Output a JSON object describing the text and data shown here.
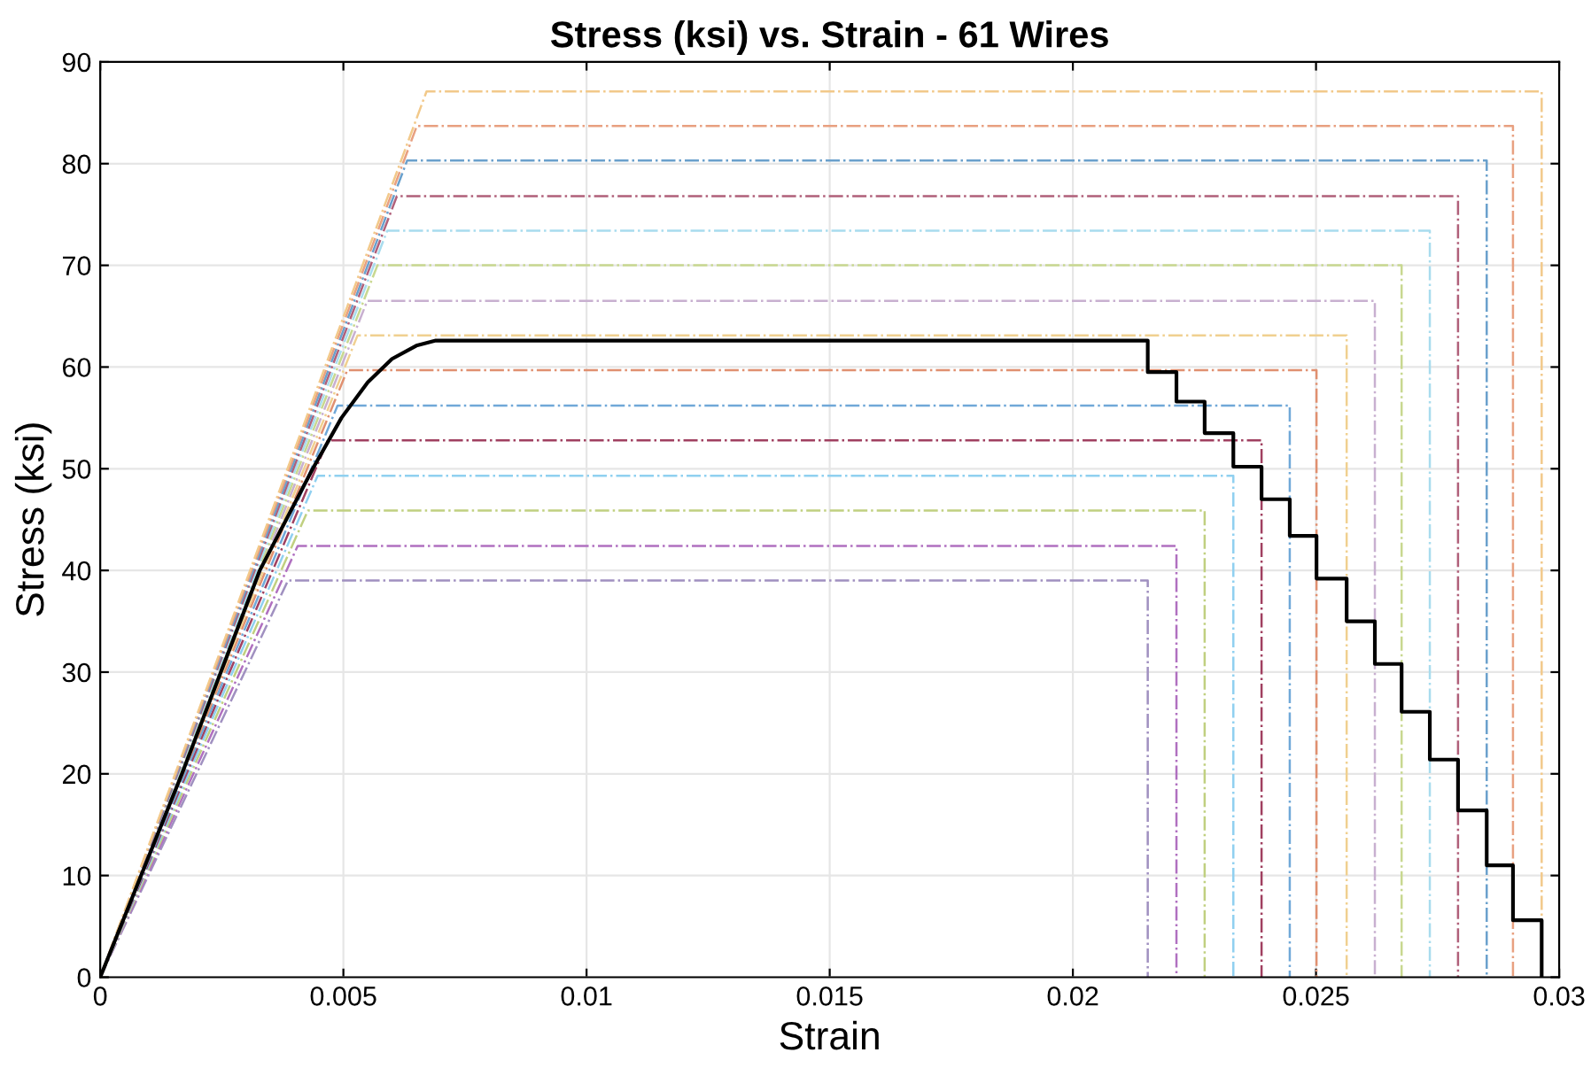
{
  "chart_data": {
    "type": "line",
    "title": "Stress (ksi) vs. Strain - 61 Wires",
    "xlabel": "Strain",
    "ylabel": "Stress (ksi)",
    "xlim": [
      0,
      0.03
    ],
    "ylim": [
      0,
      90
    ],
    "xticks": [
      0,
      0.005,
      0.01,
      0.015,
      0.02,
      0.025,
      0.03
    ],
    "yticks": [
      0,
      10,
      20,
      30,
      40,
      50,
      60,
      70,
      80,
      90
    ],
    "grid": true,
    "series": [
      {
        "color": "#a090c0",
        "line_style": "dashdot",
        "x": [
          0,
          0.00386,
          0.02154,
          0.02154
        ],
        "values": [
          0,
          39.0,
          39.0,
          0
        ]
      },
      {
        "color": "#b070c0",
        "line_style": "dashdot",
        "x": [
          0,
          0.00406,
          0.02213,
          0.02213
        ],
        "values": [
          0,
          42.4,
          42.4,
          0
        ]
      },
      {
        "color": "#c0d080",
        "line_style": "dashdot",
        "x": [
          0,
          0.00427,
          0.02271,
          0.02271
        ],
        "values": [
          0,
          45.9,
          45.9,
          0
        ]
      },
      {
        "color": "#90d0f0",
        "line_style": "dashdot",
        "x": [
          0,
          0.00447,
          0.0233,
          0.0233
        ],
        "values": [
          0,
          49.3,
          49.3,
          0
        ]
      },
      {
        "color": "#a04060",
        "line_style": "dashdot",
        "x": [
          0,
          0.00468,
          0.02388,
          0.02388
        ],
        "values": [
          0,
          52.8,
          52.8,
          0
        ]
      },
      {
        "color": "#70a8d8",
        "line_style": "dashdot",
        "x": [
          0,
          0.00488,
          0.02446,
          0.02446
        ],
        "values": [
          0,
          56.2,
          56.2,
          0
        ]
      },
      {
        "color": "#e09070",
        "line_style": "dashdot",
        "x": [
          0,
          0.00508,
          0.02501,
          0.02501
        ],
        "values": [
          0,
          59.7,
          59.7,
          0
        ]
      },
      {
        "color": "#f0d090",
        "line_style": "dashdot",
        "x": [
          0,
          0.00529,
          0.02563,
          0.02563
        ],
        "values": [
          0,
          63.1,
          63.1,
          0
        ]
      },
      {
        "color": "#c8b0d0",
        "line_style": "dashdot",
        "x": [
          0,
          0.00549,
          0.02621,
          0.02621
        ],
        "values": [
          0,
          66.5,
          66.5,
          0
        ]
      },
      {
        "color": "#c8d890",
        "line_style": "dashdot",
        "x": [
          0,
          0.0057,
          0.02676,
          0.02676
        ],
        "values": [
          0,
          70.0,
          70.0,
          0
        ]
      },
      {
        "color": "#a8dcee",
        "line_style": "dashdot",
        "x": [
          0,
          0.0059,
          0.02734,
          0.02734
        ],
        "values": [
          0,
          73.4,
          73.4,
          0
        ]
      },
      {
        "color": "#b0607a",
        "line_style": "dashdot",
        "x": [
          0,
          0.0061,
          0.02792,
          0.02792
        ],
        "values": [
          0,
          76.8,
          76.8,
          0
        ]
      },
      {
        "color": "#6aa0cc",
        "line_style": "dashdot",
        "x": [
          0,
          0.00631,
          0.02851,
          0.02851
        ],
        "values": [
          0,
          80.3,
          80.3,
          0
        ]
      },
      {
        "color": "#e8a080",
        "line_style": "dashdot",
        "x": [
          0,
          0.00651,
          0.02905,
          0.02905
        ],
        "values": [
          0,
          83.7,
          83.7,
          0
        ]
      },
      {
        "color": "#f2c98a",
        "line_style": "dashdot",
        "x": [
          0,
          0.00671,
          0.02964,
          0.02964
        ],
        "values": [
          0,
          87.1,
          87.1,
          0
        ]
      },
      {
        "color": "#000000",
        "line_style": "solid",
        "x": [
          0,
          0.00168,
          0.00328,
          0.00437,
          0.00496,
          0.0055,
          0.006,
          0.0065,
          0.0069,
          0.02154,
          0.02154,
          0.02213,
          0.02213,
          0.02271,
          0.02271,
          0.0233,
          0.0233,
          0.02388,
          0.02388,
          0.02446,
          0.02446,
          0.02501,
          0.02501,
          0.02563,
          0.02563,
          0.02621,
          0.02621,
          0.02676,
          0.02676,
          0.02734,
          0.02734,
          0.02792,
          0.02792,
          0.02851,
          0.02851,
          0.02905,
          0.02905,
          0.02964,
          0.02964
        ],
        "values": [
          0,
          20,
          40,
          50,
          55,
          58.5,
          60.8,
          62.1,
          62.6,
          62.6,
          59.5,
          59.5,
          56.6,
          56.6,
          53.5,
          53.5,
          50.2,
          50.2,
          47.0,
          47.0,
          43.4,
          43.4,
          39.2,
          39.2,
          35.0,
          35.0,
          30.8,
          30.8,
          26.1,
          26.1,
          21.4,
          21.4,
          16.4,
          16.4,
          11.0,
          11.0,
          5.6,
          5.6,
          0
        ]
      }
    ]
  }
}
